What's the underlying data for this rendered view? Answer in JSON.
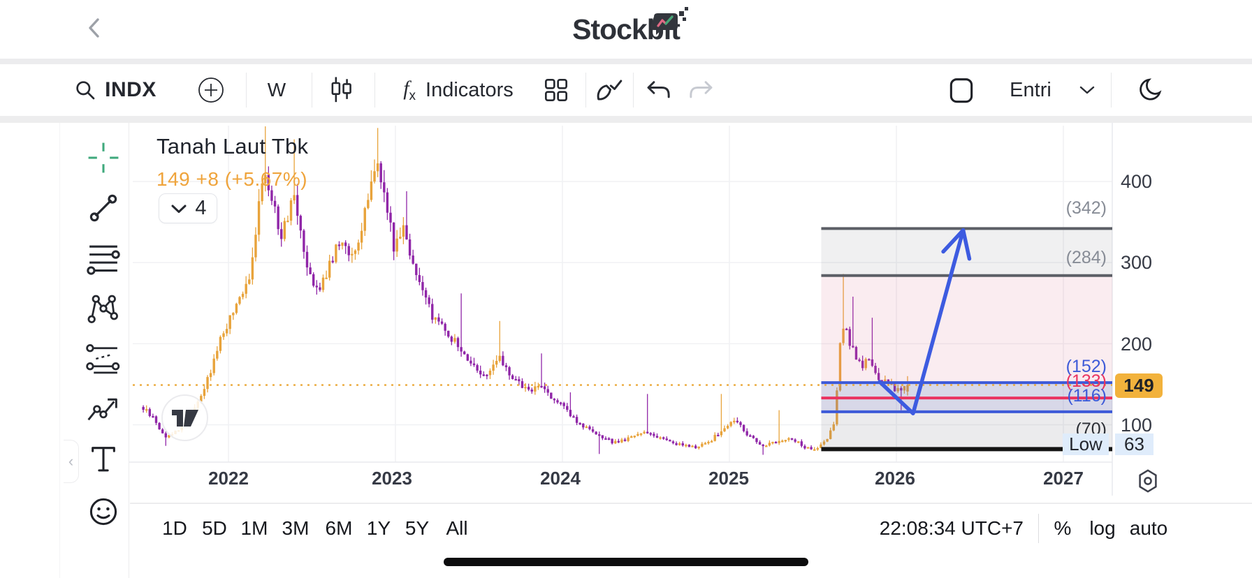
{
  "header": {
    "app_title": "Stockbit"
  },
  "toolbar": {
    "symbol": "INDX",
    "interval": "W",
    "indicators_label": "Indicators",
    "fx": "f",
    "fx_sub": "x",
    "entri_label": "Entri"
  },
  "sidebar": {
    "tools": [
      {
        "name": "crosshair"
      },
      {
        "name": "trend-line"
      },
      {
        "name": "fib-retracement"
      },
      {
        "name": "xabcd-pattern"
      },
      {
        "name": "parallel-channel"
      },
      {
        "name": "trend-arrow"
      },
      {
        "name": "text-tool"
      },
      {
        "name": "emoji-tool"
      }
    ]
  },
  "chart": {
    "title": "Tanah Laut Tbk",
    "price_line": "149  +8 (+5.67%)",
    "drawings_count": "4",
    "price_badge": "149",
    "low_label": "Low",
    "low_value": "63"
  },
  "chart_data": {
    "type": "candlestick",
    "title": "Tanah Laut Tbk weekly (W) price chart",
    "symbol": "INDX",
    "current_price": 149,
    "change": "+8",
    "change_pct": "+5.67%",
    "session_low": 63,
    "y_ticks": [
      "400",
      "300",
      "200",
      "100"
    ],
    "y_tick_values": [
      400,
      300,
      200,
      100
    ],
    "years": [
      "2022",
      "2023",
      "2024",
      "2025",
      "2026",
      "2027"
    ],
    "levels": [
      {
        "price": 342,
        "label": "(342)",
        "line_color": "#5c5f66",
        "label_color": "#878c96",
        "width": 4
      },
      {
        "price": 284,
        "label": "(284)",
        "line_color": "#5c5f66",
        "label_color": "#878c96",
        "width": 4
      },
      {
        "price": 152,
        "label": "(152)",
        "line_color": "#3d5ad8",
        "label_color": "#3d5ad8",
        "width": 4
      },
      {
        "price": 133,
        "label": "(133)",
        "line_color": "#ea3360",
        "label_color": "#ea3360",
        "width": 4
      },
      {
        "price": 116,
        "label": "(116)",
        "line_color": "#3d5ad8",
        "label_color": "#3d5ad8",
        "width": 4
      },
      {
        "price": 70,
        "label": "(70)",
        "line_color": "#141414",
        "label_color": "#2b2e35",
        "width": 6
      }
    ],
    "bands": [
      {
        "from": 342,
        "to": 284,
        "fill": "rgba(128,131,141,0.12)"
      },
      {
        "from": 284,
        "to": 152,
        "fill": "rgba(213,105,138,0.13)"
      },
      {
        "from": 152,
        "to": 116,
        "fill": "rgba(106,104,168,0.26)"
      },
      {
        "from": 116,
        "to": 70,
        "fill": "rgba(128,131,141,0.16)"
      }
    ],
    "projection_box_years": [
      2025.55,
      2027.3
    ],
    "forecast_arrow": {
      "points_t_price": [
        [
          2025.9,
          153
        ],
        [
          2026.1,
          114
        ],
        [
          2026.4,
          340
        ]
      ],
      "color": "#3d5be0"
    },
    "up_color": "#e8a33b",
    "down_color": "#9026a8",
    "dotted_price_line": {
      "price": 149,
      "color": "#ebaa3c"
    },
    "anchors_t_price_hi_lo": [
      [
        2021.49,
        122,
        null,
        null
      ],
      [
        2021.56,
        108,
        null,
        null
      ],
      [
        2021.63,
        84,
        null,
        74
      ],
      [
        2021.72,
        96,
        null,
        null
      ],
      [
        2021.8,
        118,
        null,
        null
      ],
      [
        2021.88,
        152,
        null,
        null
      ],
      [
        2021.96,
        205,
        null,
        null
      ],
      [
        2022.02,
        232,
        null,
        null
      ],
      [
        2022.1,
        262,
        null,
        null
      ],
      [
        2022.16,
        305,
        null,
        null
      ],
      [
        2022.22,
        420,
        468,
        null
      ],
      [
        2022.28,
        372,
        null,
        null
      ],
      [
        2022.33,
        330,
        null,
        null
      ],
      [
        2022.4,
        392,
        452,
        null
      ],
      [
        2022.48,
        300,
        null,
        null
      ],
      [
        2022.55,
        262,
        null,
        null
      ],
      [
        2022.62,
        302,
        null,
        null
      ],
      [
        2022.7,
        332,
        null,
        null
      ],
      [
        2022.76,
        300,
        null,
        null
      ],
      [
        2022.83,
        362,
        null,
        null
      ],
      [
        2022.89,
        430,
        466,
        null
      ],
      [
        2022.95,
        382,
        null,
        null
      ],
      [
        2023.0,
        322,
        null,
        null
      ],
      [
        2023.06,
        345,
        388,
        null
      ],
      [
        2023.14,
        280,
        null,
        null
      ],
      [
        2023.22,
        238,
        null,
        null
      ],
      [
        2023.32,
        215,
        null,
        null
      ],
      [
        2023.4,
        192,
        262,
        null
      ],
      [
        2023.48,
        172,
        null,
        null
      ],
      [
        2023.56,
        160,
        null,
        null
      ],
      [
        2023.63,
        182,
        228,
        null
      ],
      [
        2023.72,
        156,
        null,
        null
      ],
      [
        2023.8,
        142,
        null,
        null
      ],
      [
        2023.88,
        148,
        188,
        null
      ],
      [
        2023.96,
        132,
        null,
        null
      ],
      [
        2024.04,
        116,
        140,
        null
      ],
      [
        2024.12,
        100,
        null,
        null
      ],
      [
        2024.22,
        86,
        null,
        64
      ],
      [
        2024.32,
        78,
        null,
        null
      ],
      [
        2024.42,
        84,
        null,
        null
      ],
      [
        2024.5,
        92,
        138,
        null
      ],
      [
        2024.6,
        84,
        null,
        null
      ],
      [
        2024.7,
        76,
        null,
        null
      ],
      [
        2024.8,
        72,
        null,
        null
      ],
      [
        2024.88,
        78,
        null,
        null
      ],
      [
        2024.96,
        92,
        138,
        null
      ],
      [
        2025.04,
        106,
        null,
        null
      ],
      [
        2025.12,
        88,
        null,
        null
      ],
      [
        2025.2,
        74,
        null,
        63
      ],
      [
        2025.3,
        80,
        118,
        null
      ],
      [
        2025.38,
        84,
        null,
        null
      ],
      [
        2025.46,
        72,
        null,
        null
      ],
      [
        2025.52,
        68,
        null,
        null
      ],
      [
        2025.58,
        78,
        null,
        null
      ],
      [
        2025.64,
        100,
        null,
        null
      ],
      [
        2025.68,
        230,
        286,
        null
      ],
      [
        2025.74,
        196,
        258,
        null
      ],
      [
        2025.8,
        172,
        null,
        null
      ],
      [
        2025.85,
        182,
        232,
        null
      ],
      [
        2025.9,
        158,
        null,
        null
      ],
      [
        2025.96,
        150,
        null,
        null
      ],
      [
        2026.02,
        142,
        null,
        118
      ],
      [
        2026.08,
        149,
        160,
        null
      ]
    ]
  },
  "bottom_bar": {
    "ranges": [
      "1D",
      "5D",
      "1M",
      "3M",
      "6M",
      "1Y",
      "5Y",
      "All"
    ],
    "clock": "22:08:34 UTC+7",
    "scales": [
      "%",
      "log",
      "auto"
    ]
  }
}
